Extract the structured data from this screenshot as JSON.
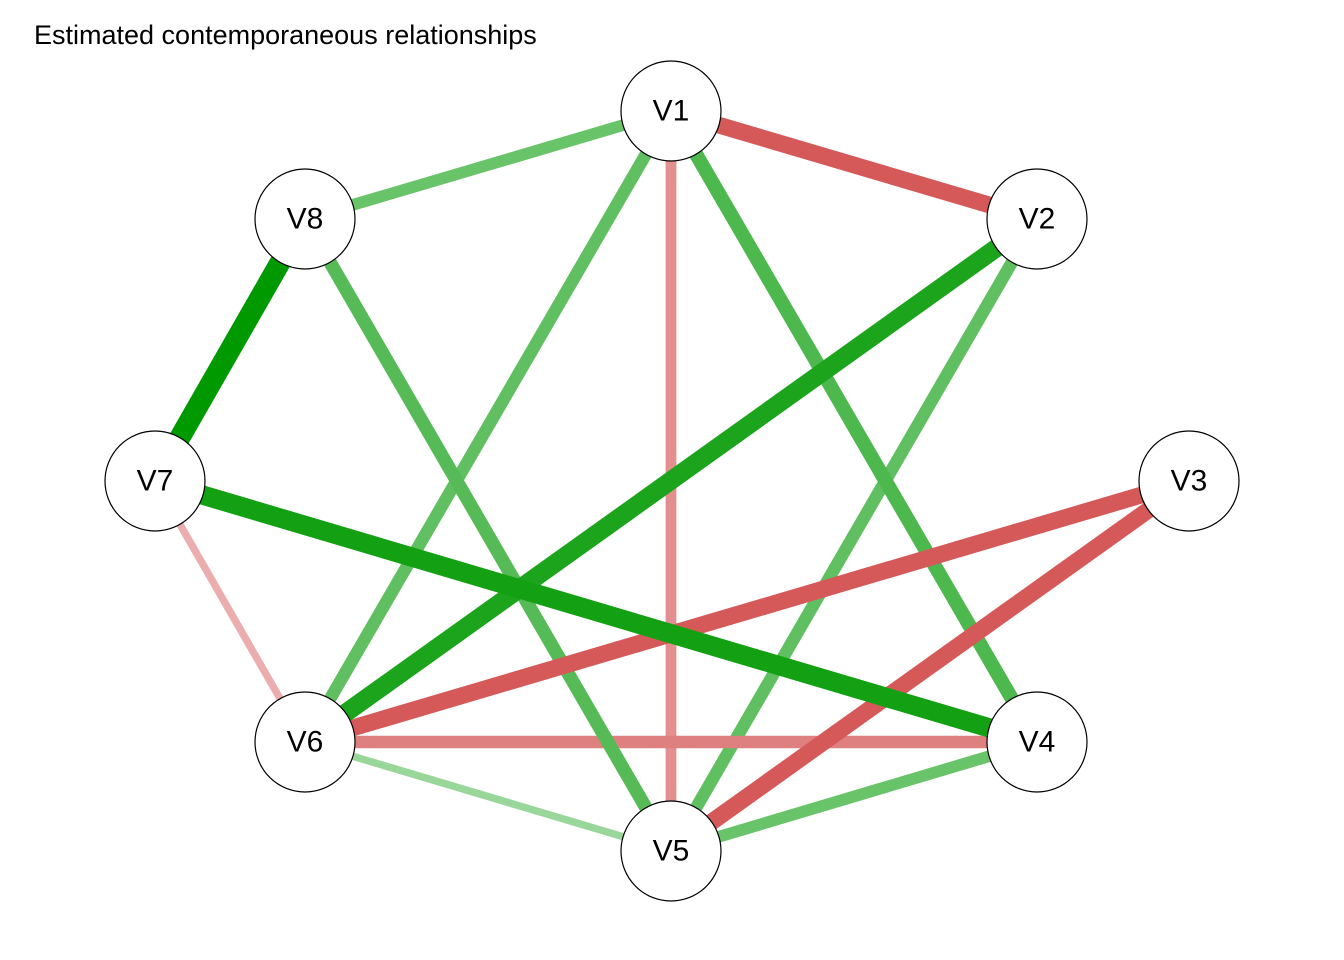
{
  "title": "Estimated contemporaneous relationships",
  "colors": {
    "positive": "#009900",
    "negative": "#cc3333",
    "node_fill": "#ffffff",
    "node_stroke": "#000000"
  },
  "nodes": [
    {
      "id": "V1",
      "label": "V1"
    },
    {
      "id": "V2",
      "label": "V2"
    },
    {
      "id": "V3",
      "label": "V3"
    },
    {
      "id": "V4",
      "label": "V4"
    },
    {
      "id": "V5",
      "label": "V5"
    },
    {
      "id": "V6",
      "label": "V6"
    },
    {
      "id": "V7",
      "label": "V7"
    },
    {
      "id": "V8",
      "label": "V8"
    }
  ],
  "edges": [
    {
      "from": "V7",
      "to": "V8",
      "sign": "positive",
      "strength": 1.0
    },
    {
      "from": "V7",
      "to": "V4",
      "sign": "positive",
      "strength": 0.9
    },
    {
      "from": "V2",
      "to": "V6",
      "sign": "positive",
      "strength": 0.85
    },
    {
      "from": "V1",
      "to": "V4",
      "sign": "positive",
      "strength": 0.6
    },
    {
      "from": "V8",
      "to": "V5",
      "sign": "positive",
      "strength": 0.55
    },
    {
      "from": "V1",
      "to": "V6",
      "sign": "positive",
      "strength": 0.5
    },
    {
      "from": "V2",
      "to": "V5",
      "sign": "positive",
      "strength": 0.5
    },
    {
      "from": "V1",
      "to": "V8",
      "sign": "positive",
      "strength": 0.45
    },
    {
      "from": "V5",
      "to": "V4",
      "sign": "positive",
      "strength": 0.45
    },
    {
      "from": "V6",
      "to": "V5",
      "sign": "positive",
      "strength": 0.2
    },
    {
      "from": "V1",
      "to": "V2",
      "sign": "negative",
      "strength": 0.75
    },
    {
      "from": "V3",
      "to": "V6",
      "sign": "negative",
      "strength": 0.75
    },
    {
      "from": "V3",
      "to": "V5",
      "sign": "negative",
      "strength": 0.75
    },
    {
      "from": "V6",
      "to": "V4",
      "sign": "negative",
      "strength": 0.5
    },
    {
      "from": "V1",
      "to": "V5",
      "sign": "negative",
      "strength": 0.4
    },
    {
      "from": "V7",
      "to": "V6",
      "sign": "negative",
      "strength": 0.2
    }
  ]
}
